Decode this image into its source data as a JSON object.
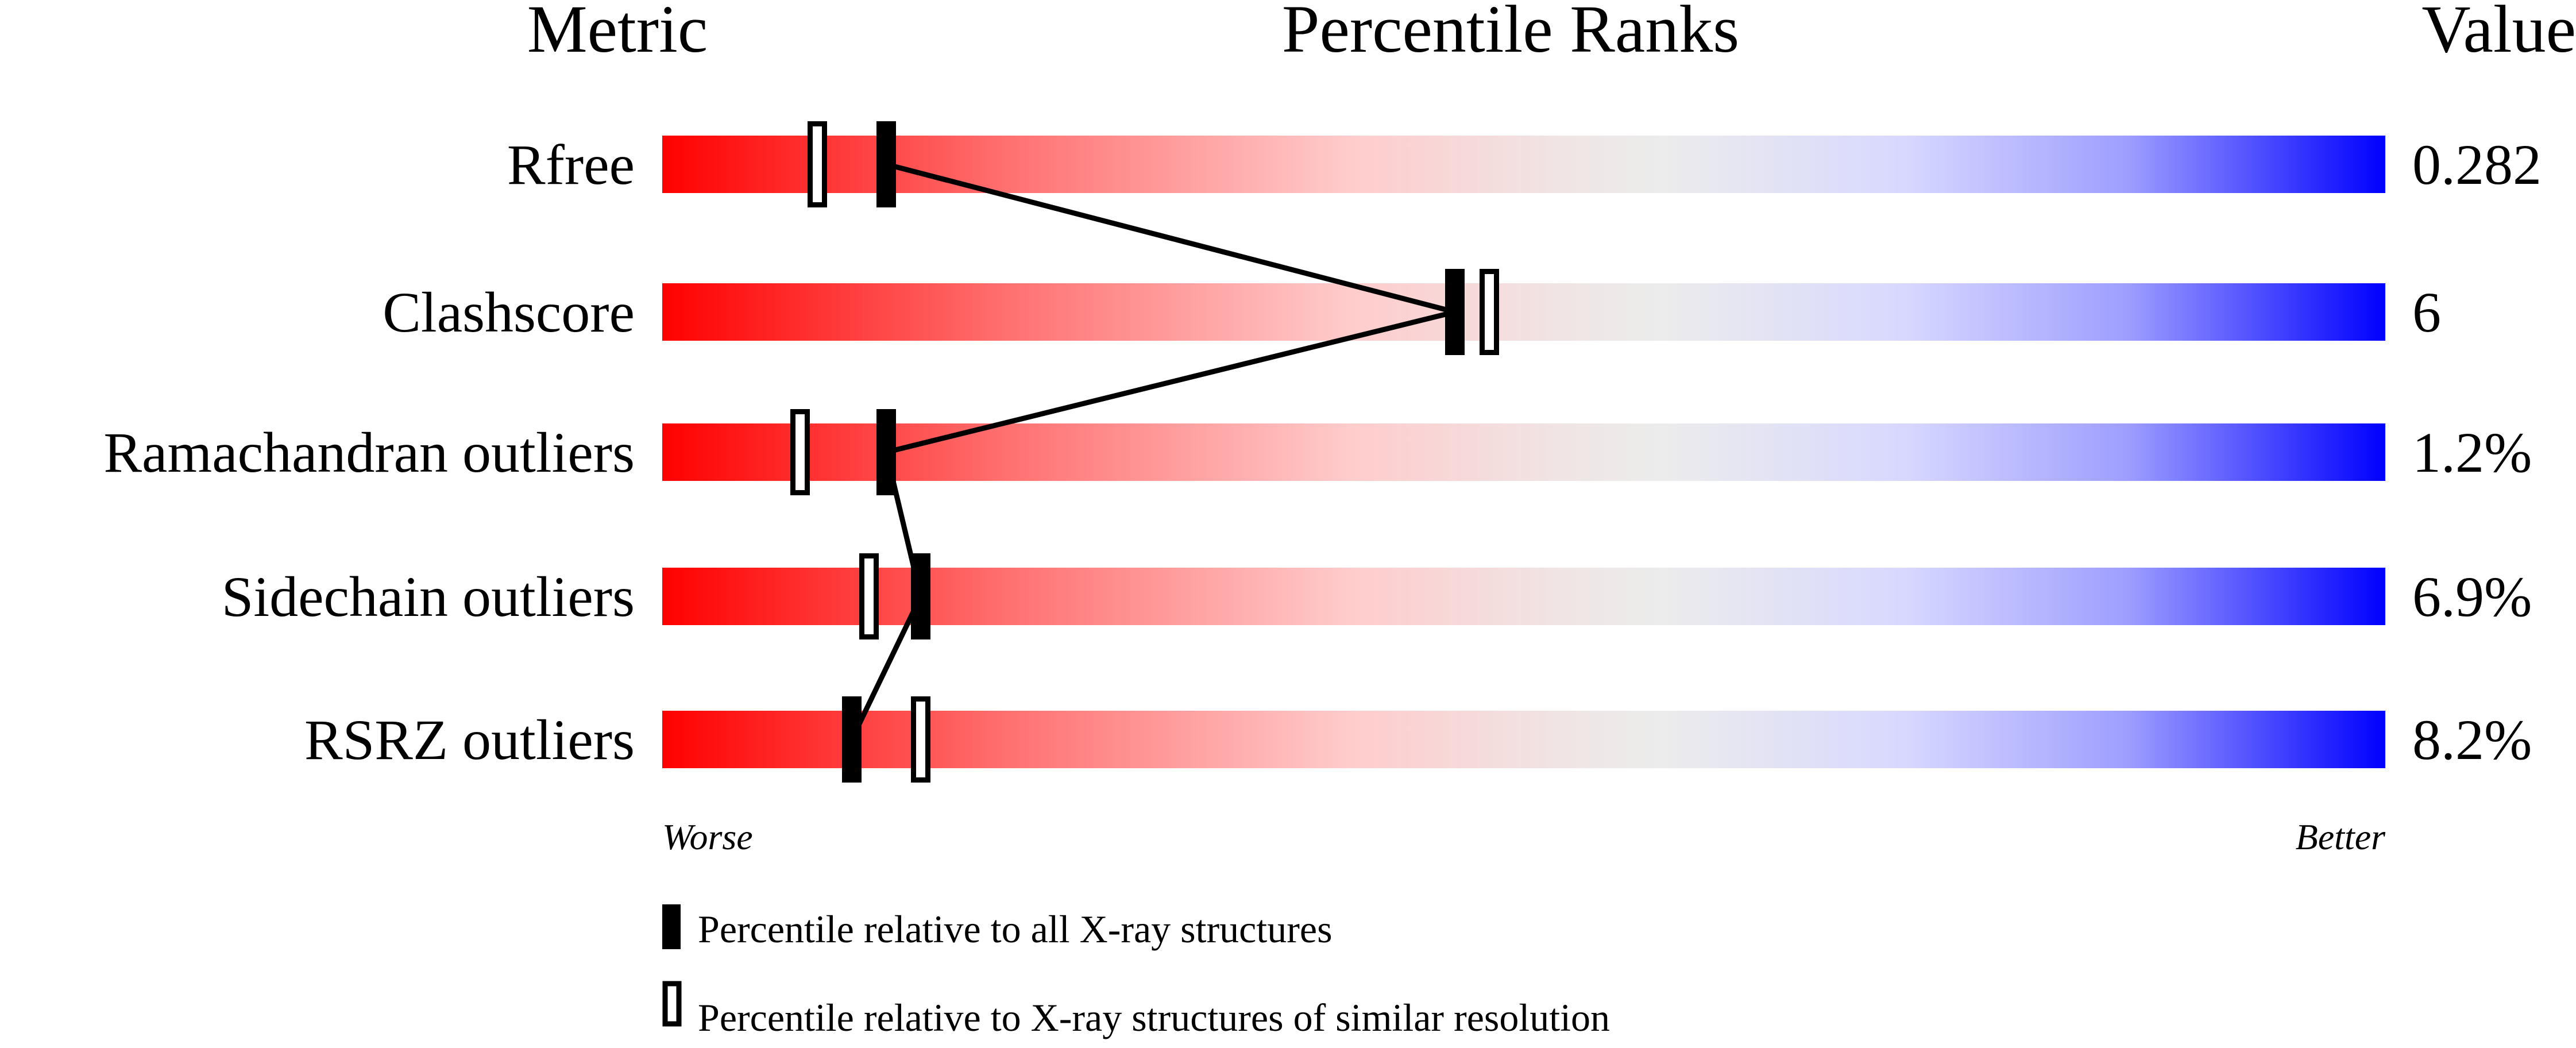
{
  "chart_data": {
    "type": "percentile-ranks",
    "headers": {
      "metric": "Metric",
      "title": "Percentile Ranks",
      "value": "Value"
    },
    "axis": {
      "min_label": "Worse",
      "max_label": "Better",
      "range": [
        0,
        100
      ]
    },
    "colors": {
      "worse": "#ff0000",
      "middle": "#eeeeee",
      "better": "#0000ff",
      "marker": "#000000"
    },
    "metrics": [
      {
        "name": "Rfree",
        "value": "0.282",
        "percentile_all": 13,
        "percentile_similar": 9
      },
      {
        "name": "Clashscore",
        "value": "6",
        "percentile_all": 46,
        "percentile_similar": 48
      },
      {
        "name": "Ramachandran outliers",
        "value": "1.2%",
        "percentile_all": 13,
        "percentile_similar": 8
      },
      {
        "name": "Sidechain outliers",
        "value": "6.9%",
        "percentile_all": 15,
        "percentile_similar": 12
      },
      {
        "name": "RSRZ outliers",
        "value": "8.2%",
        "percentile_all": 11,
        "percentile_similar": 15
      }
    ],
    "legend": [
      {
        "marker": "filled",
        "label": "Percentile relative to all X-ray structures"
      },
      {
        "marker": "open",
        "label": "Percentile relative to X-ray structures of similar resolution"
      }
    ]
  }
}
